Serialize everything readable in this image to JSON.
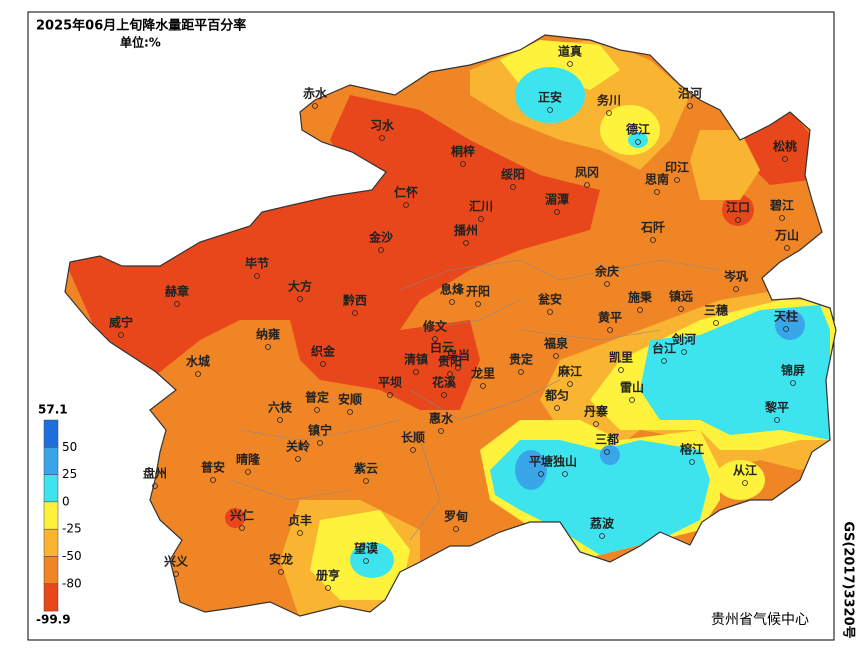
{
  "header": {
    "title": "2025年06月上旬降水量距平百分率",
    "unit": "单位:%"
  },
  "legend": {
    "max": 57.1,
    "levels": [
      50,
      25,
      0,
      -25,
      -50,
      -80
    ],
    "min": -99.9,
    "colors": [
      "#1e6fde",
      "#3aa6ea",
      "#3de4ee",
      "#fff23c",
      "#f9b531",
      "#f08526",
      "#e8461b"
    ]
  },
  "cities": [
    "赤水",
    "习水",
    "道真",
    "正安",
    "务川",
    "沿河",
    "德江",
    "松桃",
    "桐梓",
    "绥阳",
    "凤冈",
    "印江",
    "思南",
    "仁怀",
    "汇川",
    "湄潭",
    "江口",
    "碧江",
    "石阡",
    "播州",
    "金沙",
    "万山",
    "毕节",
    "余庆",
    "岑巩",
    "大方",
    "赫章",
    "息烽",
    "开阳",
    "瓮安",
    "施秉",
    "镇远",
    "黔西",
    "威宁",
    "纳雍",
    "修文",
    "黄平",
    "三穗",
    "天柱",
    "白云",
    "乌当",
    "福泉",
    "剑河",
    "台江",
    "水城",
    "织金",
    "清镇",
    "贵阳",
    "贵定",
    "龙里",
    "凯里",
    "锦屏",
    "麻江",
    "平坝",
    "花溪",
    "雷山",
    "都匀",
    "六枝",
    "普定",
    "安顺",
    "丹寨",
    "黎平",
    "惠水",
    "镇宁",
    "长顺",
    "三都",
    "关岭",
    "榕江",
    "晴隆",
    "平塘",
    "独山",
    "紫云",
    "盘州",
    "普安",
    "从江",
    "兴仁",
    "罗甸",
    "贞丰",
    "荔波",
    "望谟",
    "兴义",
    "安龙",
    "册亨"
  ],
  "credit": "贵州省气候中心",
  "approval": "GS(2017)3320号"
}
